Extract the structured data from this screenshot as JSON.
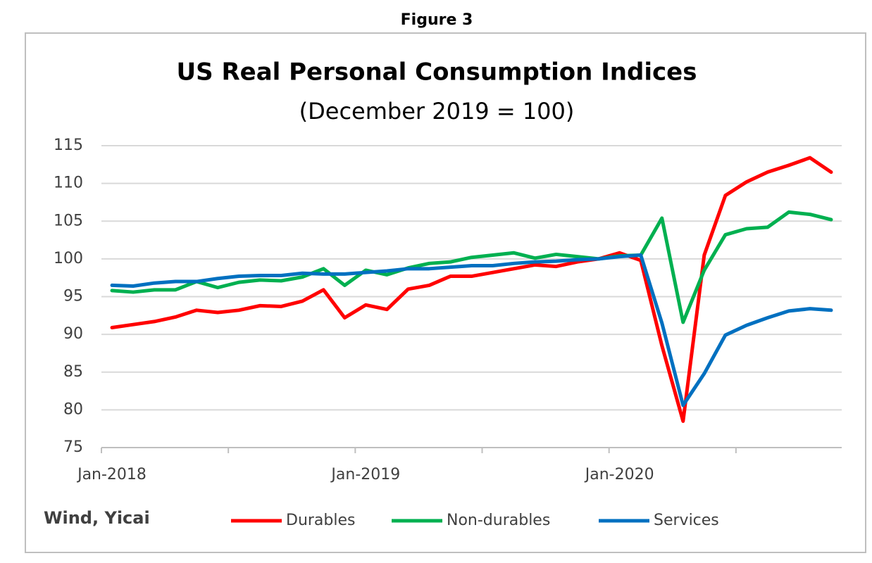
{
  "figure_label": "Figure 3",
  "chart_data": {
    "type": "line",
    "title": "US Real Personal Consumption Indices",
    "subtitle": "(December  2019 = 100)",
    "source": "Wind, Yicai",
    "categories": [
      "Jan-2018",
      null,
      null,
      null,
      null,
      null,
      null,
      null,
      null,
      null,
      null,
      null,
      "Jan-2019",
      null,
      null,
      null,
      null,
      null,
      null,
      null,
      null,
      null,
      null,
      null,
      "Jan-2020",
      null,
      null,
      null,
      null,
      null,
      null,
      null,
      null,
      null,
      null
    ],
    "series": [
      {
        "name": "Durables",
        "color": "#ff0000",
        "values": [
          90.9,
          91.3,
          91.7,
          92.3,
          93.2,
          92.9,
          93.2,
          93.8,
          93.7,
          94.4,
          95.9,
          92.2,
          93.9,
          93.3,
          96.0,
          96.5,
          97.7,
          97.7,
          98.2,
          98.7,
          99.2,
          99.0,
          99.6,
          100.0,
          100.8,
          99.8,
          88.5,
          78.5,
          100.5,
          108.4,
          110.2,
          111.5,
          112.4,
          113.4,
          111.5
        ]
      },
      {
        "name": "Non-durables",
        "color": "#00b050",
        "values": [
          95.8,
          95.6,
          95.9,
          95.9,
          97.0,
          96.2,
          96.9,
          97.2,
          97.1,
          97.6,
          98.7,
          96.5,
          98.5,
          97.9,
          98.8,
          99.4,
          99.6,
          100.2,
          100.5,
          100.8,
          100.1,
          100.6,
          100.3,
          100.0,
          100.4,
          100.5,
          105.4,
          91.6,
          98.5,
          103.2,
          104.0,
          104.2,
          106.2,
          105.9,
          105.2
        ]
      },
      {
        "name": "Services",
        "color": "#0070c0",
        "values": [
          96.5,
          96.4,
          96.8,
          97.0,
          97.0,
          97.4,
          97.7,
          97.8,
          97.8,
          98.1,
          98.0,
          98.0,
          98.2,
          98.4,
          98.7,
          98.7,
          98.9,
          99.1,
          99.1,
          99.4,
          99.6,
          99.7,
          99.9,
          100.0,
          100.3,
          100.5,
          91.5,
          80.6,
          84.8,
          89.9,
          91.2,
          92.2,
          93.1,
          93.4,
          93.2
        ]
      }
    ],
    "ylim": [
      75,
      115
    ],
    "yticks": [
      75,
      80,
      85,
      90,
      95,
      100,
      105,
      110,
      115
    ],
    "grid": true,
    "legend": "bottom"
  }
}
